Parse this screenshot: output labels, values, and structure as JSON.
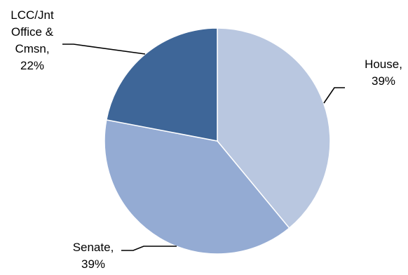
{
  "chart_data": {
    "type": "pie",
    "start_angle_deg": 0,
    "direction": "clockwise",
    "slices": [
      {
        "label_lines": [
          "House,",
          "39%"
        ],
        "category": "House",
        "value": 39,
        "color": "#b9c7e0"
      },
      {
        "label_lines": [
          "Senate,",
          "39%"
        ],
        "category": "Senate",
        "value": 39,
        "color": "#94abd3"
      },
      {
        "label_lines": [
          "LCC/Jnt",
          "Office &",
          "Cmsn,",
          "22%"
        ],
        "category": "LCC/Jnt Office & Cmsn",
        "value": 22,
        "color": "#3e6698"
      }
    ]
  }
}
